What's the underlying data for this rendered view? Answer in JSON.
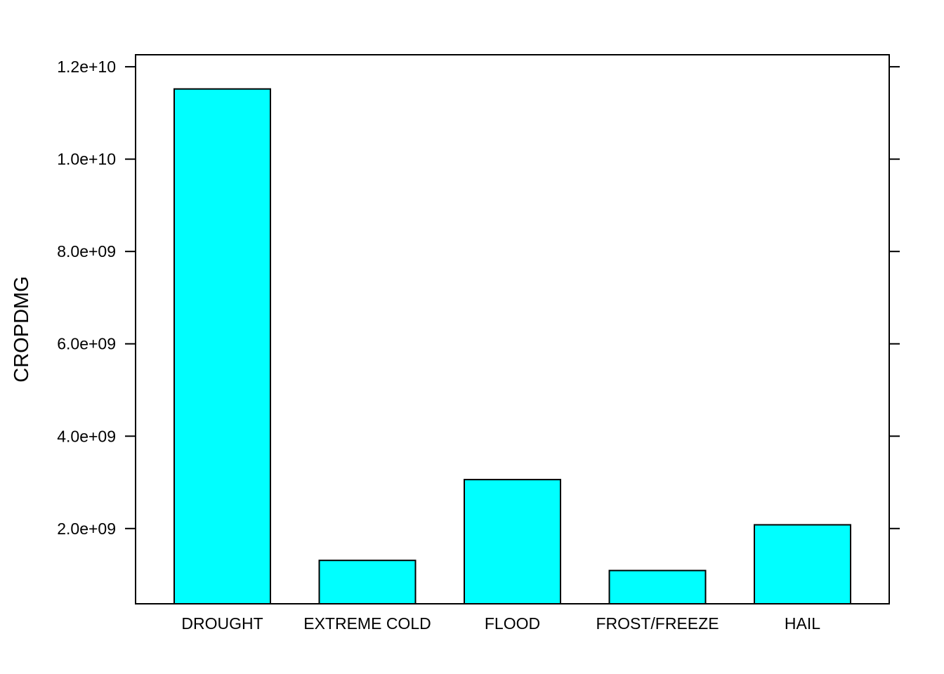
{
  "chart_data": {
    "type": "bar",
    "title": "",
    "xlabel": "",
    "ylabel": "CROPDMG",
    "categories": [
      "DROUGHT",
      "EXTREME COLD",
      "FLOOD",
      "FROST/FREEZE",
      "HAIL"
    ],
    "values": [
      11520000000,
      1310000000,
      3060000000,
      1090000000,
      2080000000
    ],
    "ylim": [
      370000000,
      12260000000
    ],
    "yticks": [
      2000000000,
      4000000000,
      6000000000,
      8000000000,
      10000000000,
      12000000000
    ],
    "ytick_labels": [
      "2.0e+09",
      "4.0e+09",
      "6.0e+09",
      "8.0e+09",
      "1.0e+10",
      "1.2e+10"
    ],
    "grid": false,
    "legend": "none",
    "bar_color": "#00FFFF",
    "bar_edge_color": "#000000"
  }
}
